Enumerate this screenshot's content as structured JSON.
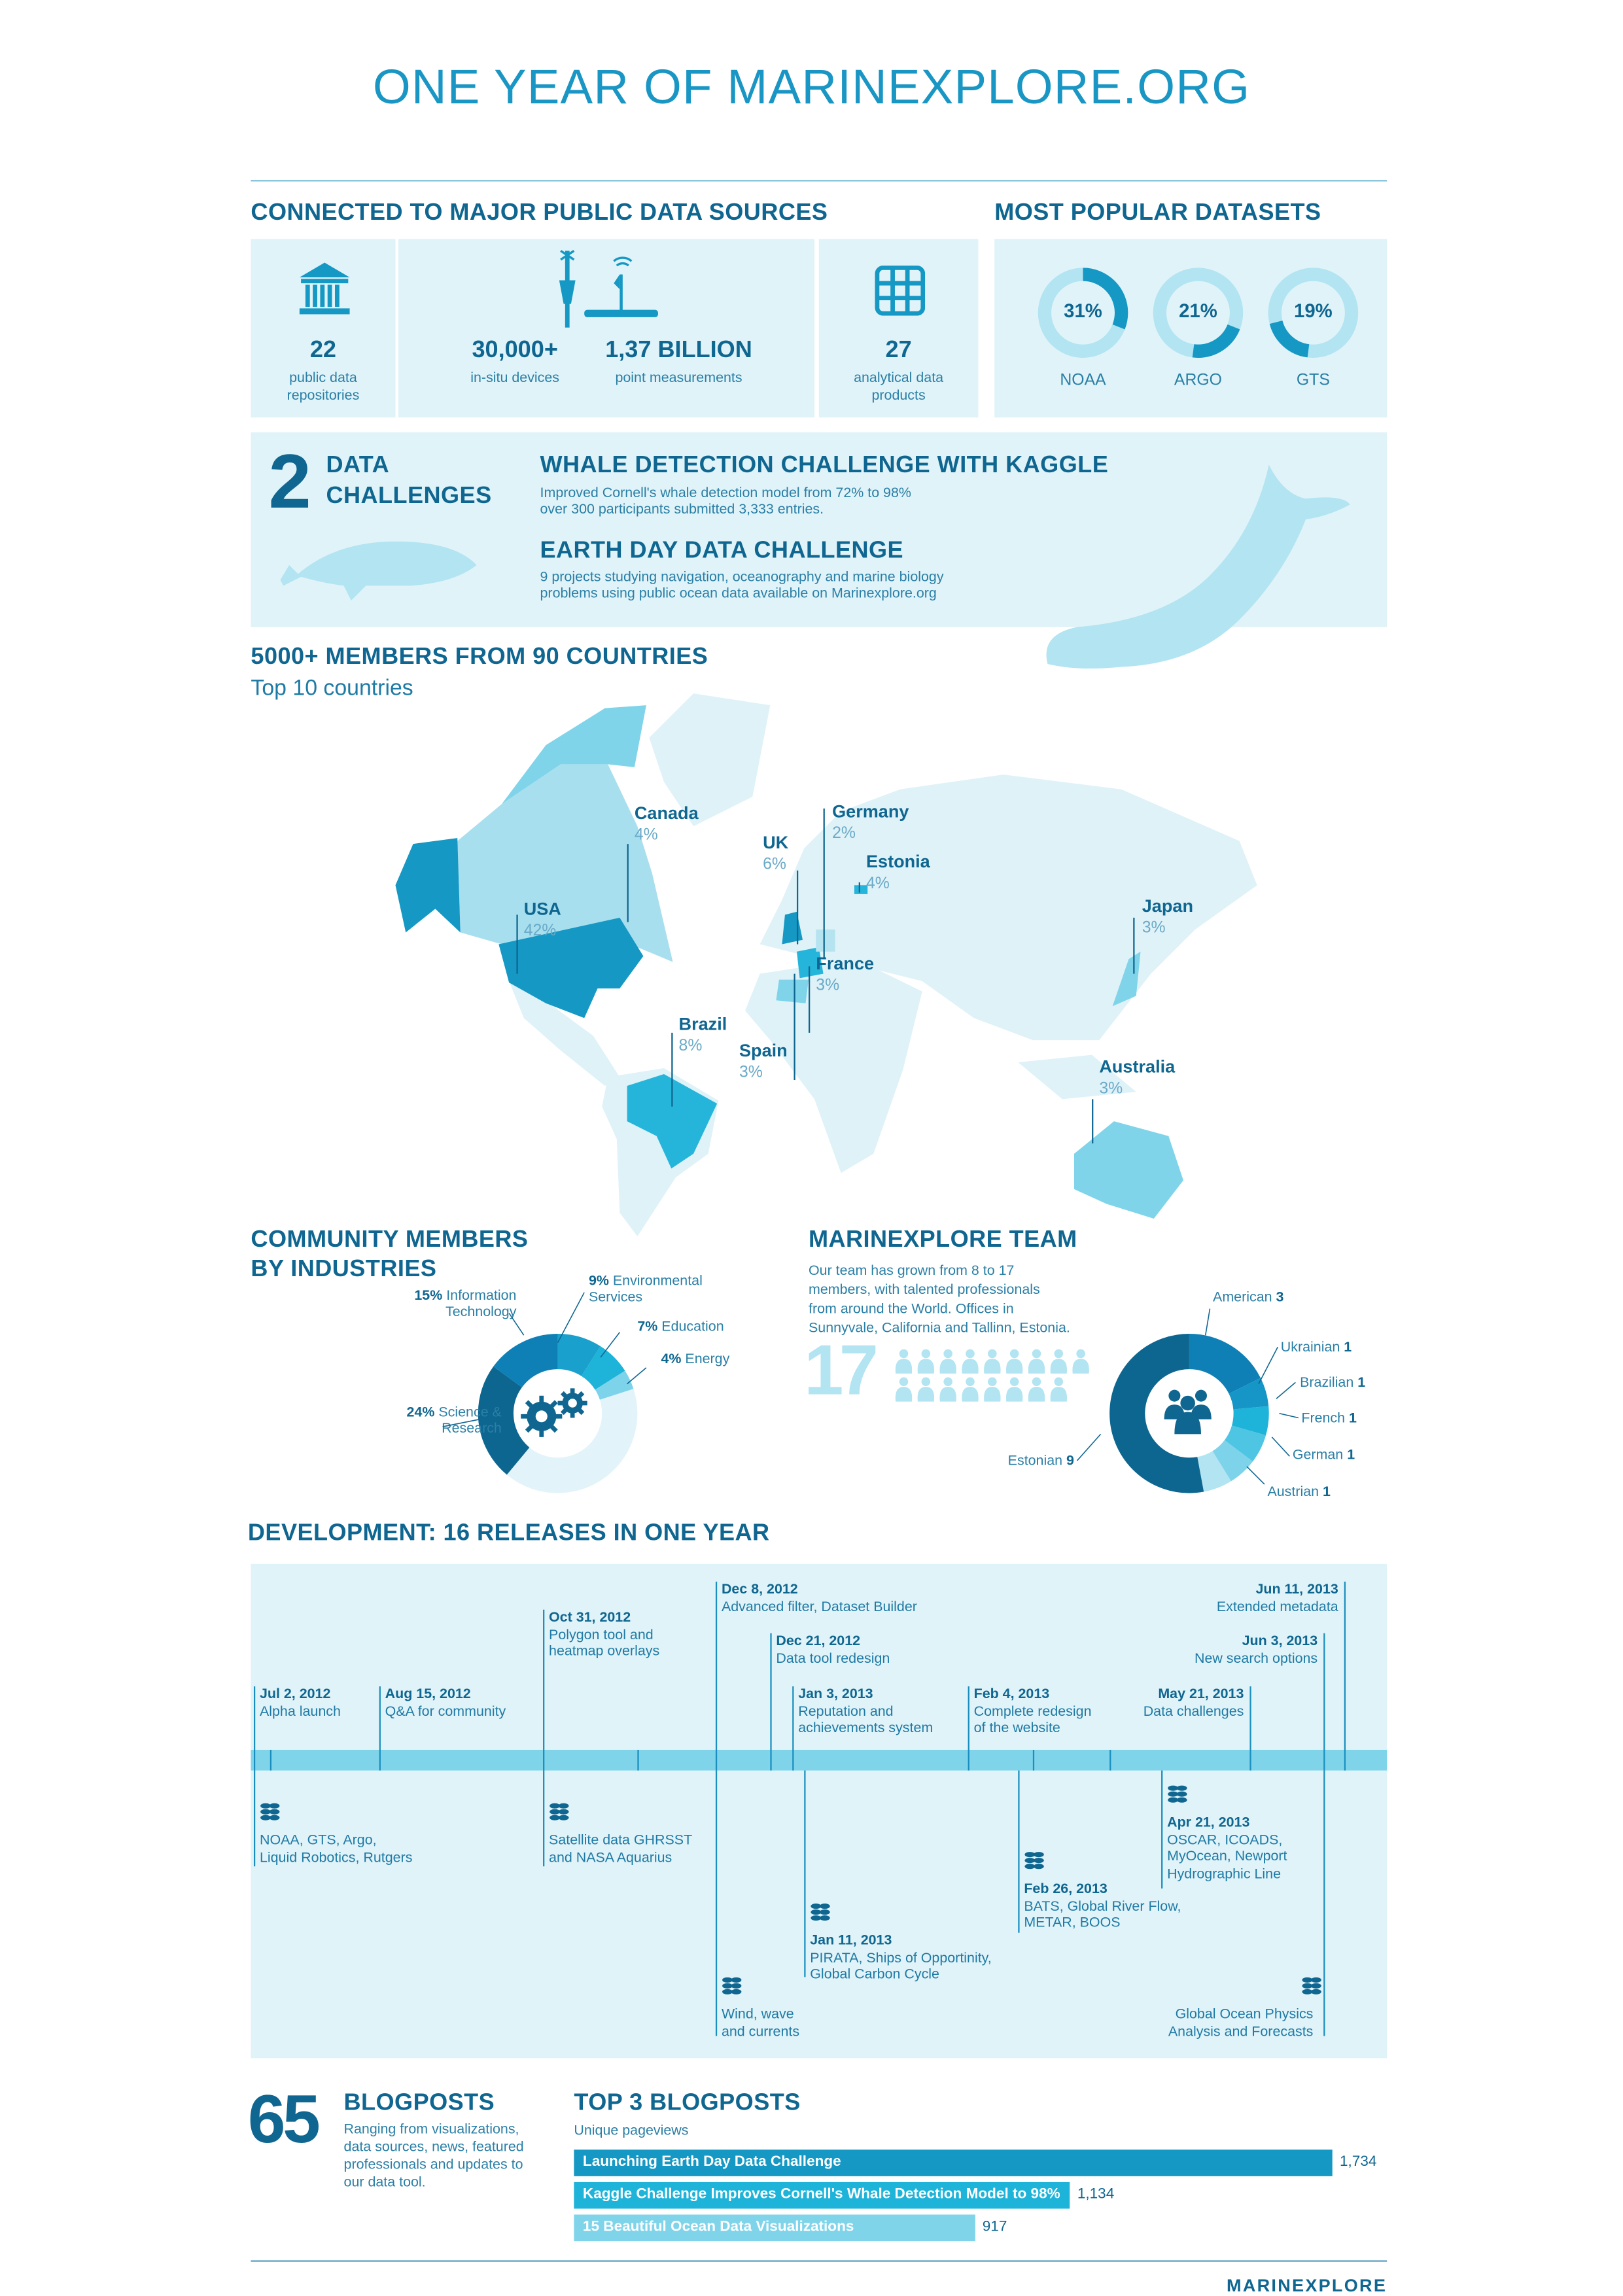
{
  "title": "ONE YEAR OF MARINEXPLORE.ORG",
  "colors": {
    "dark": "#0f6690",
    "mid": "#1598c4",
    "bright": "#26b5da",
    "light": "#7fd4ea",
    "pale": "#e0f3f8"
  },
  "sources": {
    "heading": "CONNECTED TO MAJOR PUBLIC DATA SOURCES",
    "items": [
      {
        "value": "22",
        "label1": "public data",
        "label2": "repositories",
        "icon": "bank-icon"
      },
      {
        "value": "30,000+",
        "label1": "in-situ devices",
        "icon": "buoy-icon"
      },
      {
        "value": "1,37 BILLION",
        "label1": "point measurements",
        "icon": "platform-icon"
      },
      {
        "value": "27",
        "label1": "analytical data",
        "label2": "products",
        "icon": "grid-icon"
      }
    ]
  },
  "popular": {
    "heading": "MOST POPULAR DATASETS",
    "items": [
      {
        "name": "NOAA",
        "percent": 31,
        "label": "31%"
      },
      {
        "name": "ARGO",
        "percent": 21,
        "label": "21%"
      },
      {
        "name": "GTS",
        "percent": 19,
        "label": "19%"
      }
    ]
  },
  "challenges": {
    "count": "2",
    "title1": "DATA",
    "title2": "CHALLENGES",
    "items": [
      {
        "title": "WHALE DETECTION CHALLENGE WITH KAGGLE",
        "line1": "Improved Cornell's whale detection model from 72% to 98%",
        "line2": "over 300 participants submitted 3,333 entries."
      },
      {
        "title": "EARTH DAY DATA CHALLENGE",
        "line1": "9 projects studying navigation, oceanography and marine biology",
        "line2": "problems using public ocean data available on Marinexplore.org"
      }
    ]
  },
  "members": {
    "heading": "5000+ MEMBERS FROM 90 COUNTRIES",
    "subheading": "Top 10 countries",
    "countries": [
      {
        "name": "Canada",
        "pct": "4%"
      },
      {
        "name": "USA",
        "pct": "42%"
      },
      {
        "name": "UK",
        "pct": "6%"
      },
      {
        "name": "Germany",
        "pct": "2%"
      },
      {
        "name": "Estonia",
        "pct": "4%"
      },
      {
        "name": "France",
        "pct": "3%"
      },
      {
        "name": "Spain",
        "pct": "3%"
      },
      {
        "name": "Brazil",
        "pct": "8%"
      },
      {
        "name": "Japan",
        "pct": "3%"
      },
      {
        "name": "Australia",
        "pct": "3%"
      }
    ]
  },
  "industries": {
    "heading1": "COMMUNITY MEMBERS",
    "heading2": "BY INDUSTRIES",
    "segments": [
      {
        "pct": "9%",
        "name1": "Environmental",
        "name2": "Services",
        "value": 9,
        "color": "#1aa0cc"
      },
      {
        "pct": "7%",
        "name1": "Education",
        "value": 7,
        "color": "#1eb3d9"
      },
      {
        "pct": "4%",
        "name1": "Energy",
        "value": 4,
        "color": "#7dd3ea"
      },
      {
        "value": 41,
        "color": "#e2f4f9"
      },
      {
        "pct": "24%",
        "name1": "Science &",
        "name2": "Research",
        "value": 24,
        "color": "#0d6690"
      },
      {
        "pct": "15%",
        "name1": "Information",
        "name2": "Technology",
        "value": 15,
        "color": "#0e80b6"
      }
    ]
  },
  "team": {
    "heading": "MARINEXPLORE TEAM",
    "desc": [
      "Our team has grown from 8 to 17",
      "members, with talented professionals",
      "from around the World. Offices in",
      "Sunnyvale, California and Tallinn, Estonia."
    ],
    "count": "17",
    "count_value": 17,
    "segments": [
      {
        "name": "American",
        "n": "3",
        "value": 3,
        "color": "#0e80b6"
      },
      {
        "name": "Ukrainian",
        "n": "1",
        "value": 1,
        "color": "#1596c6"
      },
      {
        "name": "Brazilian",
        "n": "1",
        "value": 1,
        "color": "#1eb3d9"
      },
      {
        "name": "French",
        "n": "1",
        "value": 1,
        "color": "#4ec5e2"
      },
      {
        "name": "German",
        "n": "1",
        "value": 1,
        "color": "#7dd3ea"
      },
      {
        "name": "Austrian",
        "n": "1",
        "value": 1,
        "color": "#b2e4f2"
      },
      {
        "name": "Estonian",
        "n": "9",
        "value": 9,
        "color": "#0d6690"
      }
    ]
  },
  "development": {
    "heading": "DEVELOPMENT: 16 RELEASES IN ONE YEAR",
    "above": [
      {
        "date": "Jul 2, 2012",
        "text": [
          "Alpha launch"
        ]
      },
      {
        "date": "Aug 15, 2012",
        "text": [
          "Q&A for community"
        ]
      },
      {
        "date": "Oct 31, 2012",
        "text": [
          "Polygon tool and",
          "heatmap overlays"
        ]
      },
      {
        "date": "Dec 8, 2012",
        "text": [
          "Advanced filter, Dataset Builder"
        ]
      },
      {
        "date": "Dec 21, 2012",
        "text": [
          "Data tool redesign"
        ]
      },
      {
        "date": "Jan 3, 2013",
        "text": [
          "Reputation and",
          "achievements system"
        ]
      },
      {
        "date": "Feb 4, 2013",
        "text": [
          "Complete redesign",
          "of the website"
        ]
      },
      {
        "date": "May 21, 2013",
        "text": [
          "Data challenges"
        ]
      },
      {
        "date": "Jun 3, 2013",
        "text": [
          "New search options"
        ]
      },
      {
        "date": "Jun 11, 2013",
        "text": [
          "Extended metadata"
        ]
      }
    ],
    "below": [
      {
        "date": "",
        "text": [
          "NOAA, GTS, Argo,",
          "Liquid Robotics, Rutgers"
        ]
      },
      {
        "date": "",
        "text": [
          "Satellite data GHRSST",
          "and NASA Aquarius"
        ]
      },
      {
        "date": "",
        "text": [
          "Wind, wave",
          "and currents"
        ]
      },
      {
        "date": "Jan 11, 2013",
        "text": [
          "PIRATA, Ships of Opportinity,",
          "Global Carbon Cycle"
        ]
      },
      {
        "date": "Feb 26, 2013",
        "text": [
          "BATS, Global River Flow,",
          "METAR, BOOS"
        ]
      },
      {
        "date": "Apr 21, 2013",
        "text": [
          "OSCAR, ICOADS,",
          "MyOcean, Newport",
          "Hydrographic Line"
        ]
      },
      {
        "date": "",
        "text": [
          "Global Ocean Physics",
          "Analysis and Forecasts"
        ]
      }
    ]
  },
  "blog": {
    "count": "65",
    "heading": "BLOGPOSTS",
    "desc": [
      "Ranging from visualizations,",
      "data sources, news, featured",
      "professionals and updates to",
      "our data tool."
    ]
  },
  "chart_data": [
    {
      "type": "bar",
      "title": "TOP 3 BLOGPOSTS",
      "subtitle": "Unique pageviews",
      "categories": [
        "Launching Earth Day Data Challenge",
        "Kaggle Challenge Improves Cornell's Whale Detection Model to 98%",
        "15 Beautiful Ocean Data Visualizations"
      ],
      "values": [
        1734,
        1134,
        917
      ],
      "value_labels": [
        "1,734",
        "1,134",
        "917"
      ],
      "colors": [
        "#1598c4",
        "#1eb3d9",
        "#7fd4ea"
      ]
    }
  ],
  "footer": {
    "logo": "MARINEXPLORE"
  }
}
